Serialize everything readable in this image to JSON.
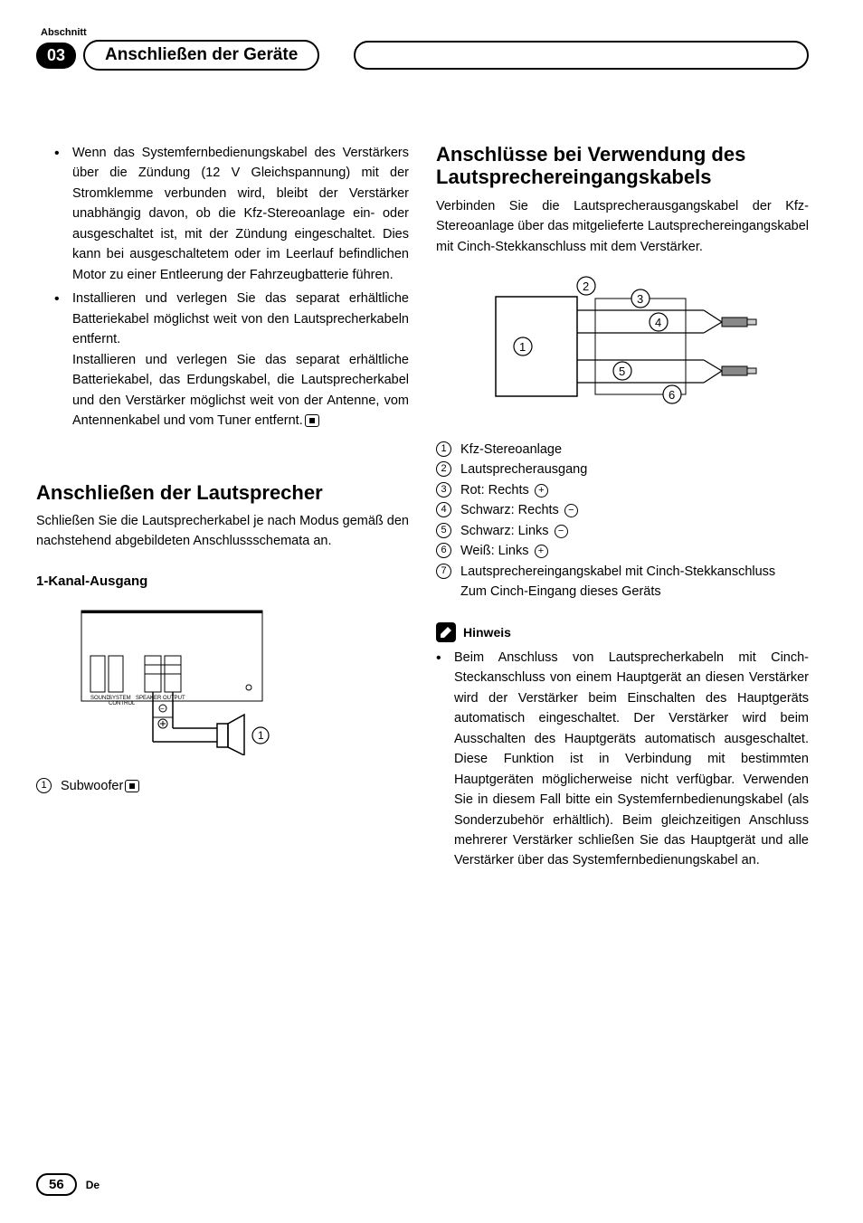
{
  "header": {
    "abschnitt": "Abschnitt",
    "number": "03",
    "title": "Anschließen der Geräte"
  },
  "left": {
    "bullets": [
      "Wenn das Systemfernbedienungskabel des Verstärkers über die Zündung (12 V Gleichspannung) mit der Stromklemme verbunden wird, bleibt der Verstärker unabhängig davon, ob die Kfz-Stereoanlage ein- oder ausgeschaltet ist, mit der Zündung eingeschaltet. Dies kann bei ausgeschaltetem oder im Leerlauf befindlichen Motor zu einer Entleerung der Fahrzeugbatterie führen.",
      "Installieren und verlegen Sie das separat erhältliche Batteriekabel möglichst weit von den Lautsprecherkabeln entfernt.\nInstallieren und verlegen Sie das separat erhältliche Batteriekabel, das Erdungskabel, die Lautsprecherkabel und den Verstärker möglichst weit von der Antenne, vom Antennenkabel und vom Tuner entfernt."
    ],
    "h2_speakers": "Anschließen der Lautsprecher",
    "speakers_body": "Schließen Sie die Lautsprecherkabel je nach Modus gemäß den nachstehend abgebildeten Anschlussschemata an.",
    "h3_1ch": "1-Kanal-Ausgang",
    "subwoofer_item": "Subwoofer"
  },
  "right": {
    "h2_cable": "Anschlüsse bei Verwendung des Lautsprechereingangskabels",
    "cable_body": "Verbinden Sie die Lautsprecherausgangskabel der Kfz-Stereoanlage über das mitgelieferte Lautsprechereingangskabel mit Cinch-Stekkanschluss mit dem Verstärker.",
    "legend": [
      {
        "n": "1",
        "label": "Kfz-Stereoanlage",
        "sign": ""
      },
      {
        "n": "2",
        "label": "Lautsprecherausgang",
        "sign": ""
      },
      {
        "n": "3",
        "label": "Rot: Rechts",
        "sign": "plus"
      },
      {
        "n": "4",
        "label": "Schwarz: Rechts",
        "sign": "minus"
      },
      {
        "n": "5",
        "label": "Schwarz: Links",
        "sign": "minus"
      },
      {
        "n": "6",
        "label": "Weiß: Links",
        "sign": "plus"
      },
      {
        "n": "7",
        "label": "Lautsprechereingangskabel mit Cinch-Stekkanschluss\nZum Cinch-Eingang dieses Geräts",
        "sign": ""
      }
    ],
    "hinweis_label": "Hinweis",
    "hinweis_body": "Beim Anschluss von Lautsprecherkabeln mit Cinch-Steckanschluss von einem Hauptgerät an diesen Verstärker wird der Verstärker beim Einschalten des Hauptgeräts automatisch eingeschaltet. Der Verstärker wird beim Ausschalten des Hauptgeräts automatisch ausgeschaltet. Diese Funktion ist in Verbindung mit bestimmten Hauptgeräten möglicherweise nicht verfügbar. Verwenden Sie in diesem Fall bitte ein Systemfernbedienungskabel (als Sonderzubehör erhältlich). Beim gleichzeitigen Anschluss mehrerer Verstärker schließen Sie das Hauptgerät und alle Verstärker über das Systemfernbedienungskabel an."
  },
  "footer": {
    "page": "56",
    "lang": "De"
  },
  "colors": {
    "text": "#000000",
    "bg": "#ffffff"
  }
}
